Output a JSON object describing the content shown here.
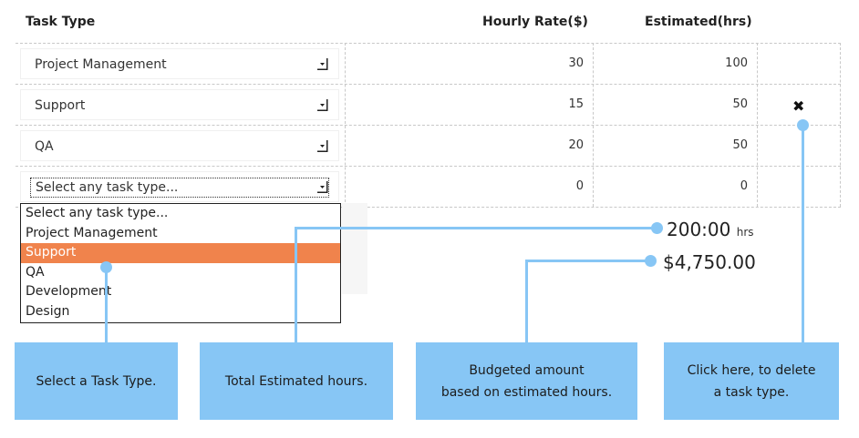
{
  "header": {
    "task_type": "Task Type",
    "hourly_rate": "Hourly Rate($)",
    "estimated": "Estimated(hrs)"
  },
  "rows": [
    {
      "task": "Project Management",
      "rate": "30",
      "hours": "100"
    },
    {
      "task": "Support",
      "rate": "15",
      "hours": "50"
    },
    {
      "task": "QA",
      "rate": "20",
      "hours": "50"
    },
    {
      "task": "Select any task type...",
      "rate": "0",
      "hours": "0"
    }
  ],
  "delete_icon": "close-icon",
  "dropdown": {
    "options": [
      "Select any task type...",
      "Project Management",
      "Support",
      "QA",
      "Development",
      "Design"
    ],
    "highlighted": "Support"
  },
  "totals": {
    "hours": "200:00",
    "hours_unit": "hrs",
    "budget": "$4,750.00"
  },
  "callouts": {
    "select": "Select a Task Type.",
    "total_hours": "Total Estimated hours.",
    "budget": "Budgeted amount\nbased on estimated hours.",
    "delete": "Click here, to delete\na task type."
  },
  "colors": {
    "callout": "#87c6f5",
    "highlight": "#f0834c"
  }
}
